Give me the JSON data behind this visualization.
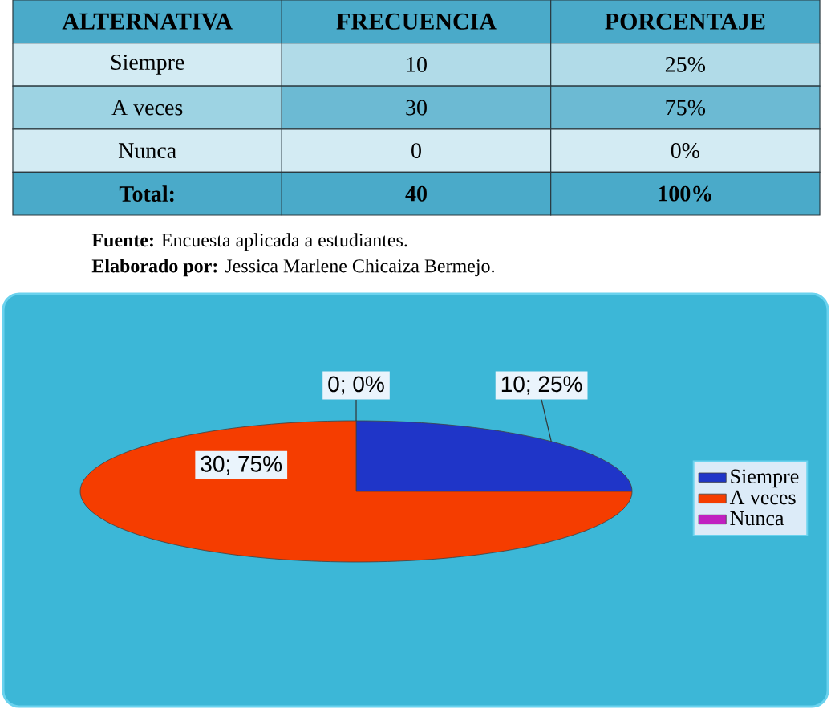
{
  "chart_data": [
    {
      "type": "heatmap",
      "ylabel": "ALTERNATIVA",
      "categories": [
        "FRECUENCIA",
        "PORCENTAJE"
      ],
      "y_categories": [
        "Siempre",
        "A veces",
        "Nunca",
        "Total:"
      ],
      "cells": [
        [
          10,
          25
        ],
        [
          30,
          75
        ],
        [
          0,
          0
        ],
        [
          40,
          100
        ]
      ],
      "cell_labels": [
        [
          "10",
          "25%"
        ],
        [
          "30",
          "75%"
        ],
        [
          "0",
          "0%"
        ],
        [
          "40",
          "100%"
        ]
      ],
      "annotations": [
        "**Fuente:** Encuesta aplicada a estudiantes.",
        "**Elaborado por:** Jessica Marlene Chicaiza Bermejo."
      ]
    },
    {
      "type": "pie",
      "categories": [
        "Siempre",
        "A veces",
        "Nunca"
      ],
      "values": [
        10,
        30,
        0
      ],
      "colors": [
        "#1f35c8",
        "#f53d00",
        "#c020c0"
      ],
      "value_labels": [
        "10; 25%",
        "30; 75%",
        "0; 0%"
      ],
      "legend": "right"
    }
  ]
}
